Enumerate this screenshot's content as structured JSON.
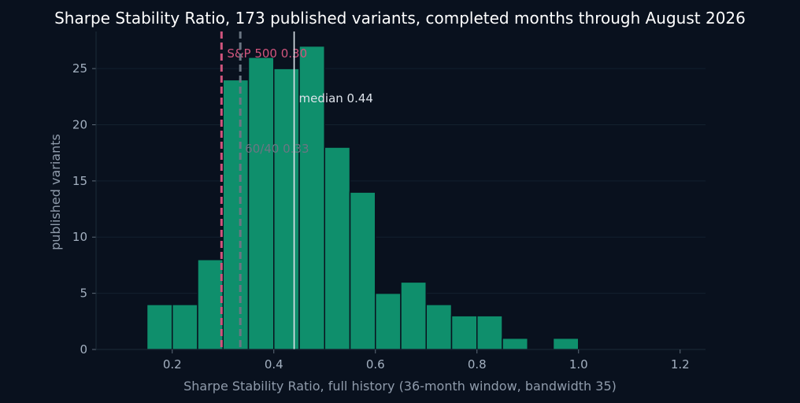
{
  "chart_data": {
    "type": "bar",
    "title": "Sharpe Stability Ratio, 173 published variants, completed months through August 2026",
    "xlabel": "Sharpe Stability Ratio, full history (36-month window, bandwidth 35)",
    "ylabel": "published variants",
    "xlim": [
      0.05,
      1.25
    ],
    "ylim": [
      0,
      28.3
    ],
    "xticks": [
      "0.2",
      "0.4",
      "0.6",
      "0.8",
      "1.0",
      "1.2"
    ],
    "yticks": [
      "0",
      "5",
      "10",
      "15",
      "20",
      "25"
    ],
    "grid": "horizontal",
    "bin_width": 0.05,
    "bins": [
      {
        "start": 0.15,
        "value": 4
      },
      {
        "start": 0.2,
        "value": 4
      },
      {
        "start": 0.25,
        "value": 8
      },
      {
        "start": 0.3,
        "value": 24
      },
      {
        "start": 0.35,
        "value": 26
      },
      {
        "start": 0.4,
        "value": 25
      },
      {
        "start": 0.45,
        "value": 27
      },
      {
        "start": 0.5,
        "value": 18
      },
      {
        "start": 0.55,
        "value": 14
      },
      {
        "start": 0.6,
        "value": 5
      },
      {
        "start": 0.65,
        "value": 6
      },
      {
        "start": 0.7,
        "value": 4
      },
      {
        "start": 0.75,
        "value": 3
      },
      {
        "start": 0.8,
        "value": 3
      },
      {
        "start": 0.85,
        "value": 1
      },
      {
        "start": 0.9,
        "value": 0
      },
      {
        "start": 0.95,
        "value": 1
      }
    ],
    "reference_lines": [
      {
        "label": "S&P 500 0.30",
        "x": 0.297,
        "color": "#d0557d",
        "style": "dashed"
      },
      {
        "label": "60/40 0.33",
        "x": 0.334,
        "color": "#6b7683",
        "style": "dashed"
      },
      {
        "label": "median 0.44",
        "x": 0.44,
        "color": "#dde3ea",
        "style": "solid"
      }
    ],
    "bar_color": "#0f8f6c",
    "background": "#09111e"
  }
}
